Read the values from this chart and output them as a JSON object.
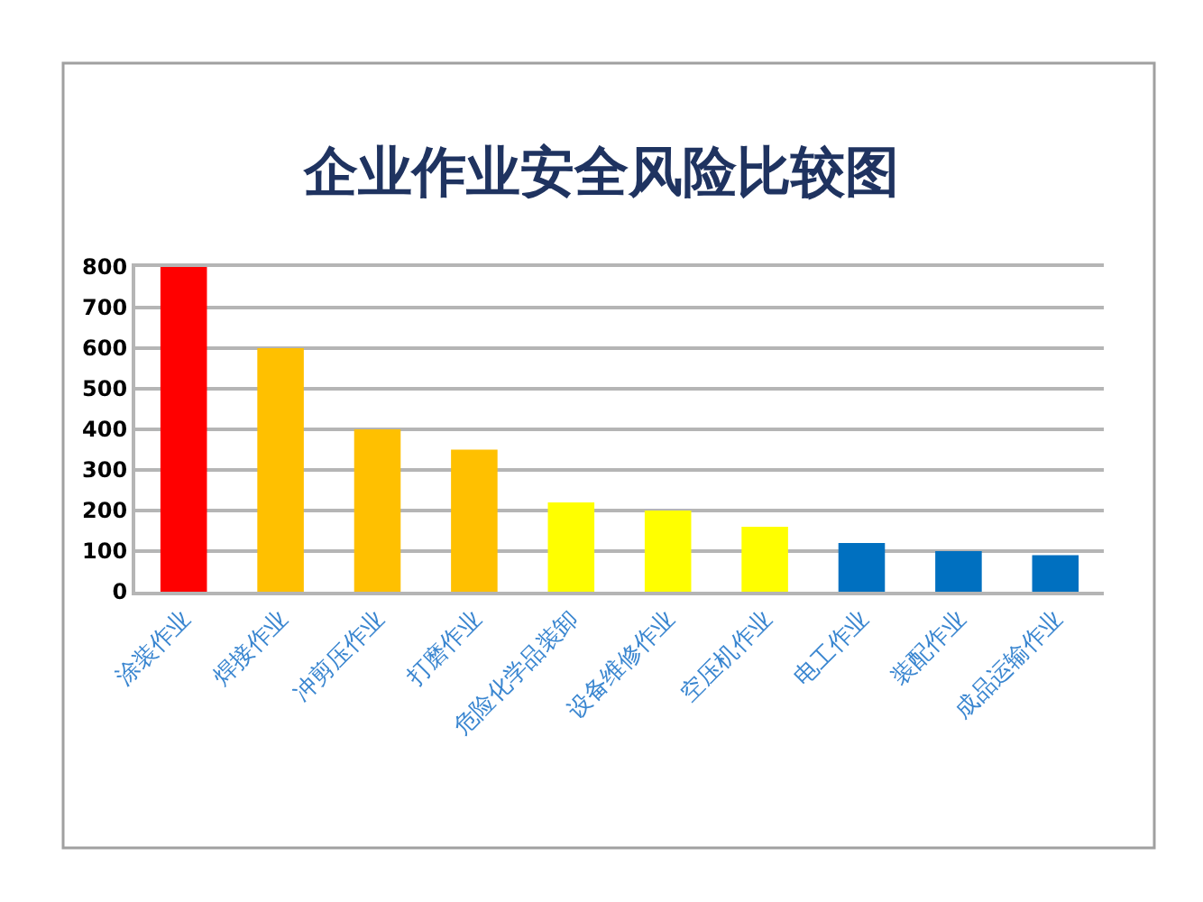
{
  "chart_data": {
    "type": "bar",
    "title": "企业作业安全风险比较图",
    "categories": [
      "涂装作业",
      "焊接作业",
      "冲剪压作业",
      "打磨作业",
      "危险化学品装卸",
      "设备维修作业",
      "空压机作业",
      "电工作业",
      "装配作业",
      "成品运输作业"
    ],
    "values": [
      800,
      600,
      400,
      350,
      220,
      200,
      160,
      120,
      100,
      90
    ],
    "colors": [
      "#ff0000",
      "#ffc000",
      "#ffc000",
      "#ffc000",
      "#ffff00",
      "#ffff00",
      "#ffff00",
      "#0070c0",
      "#0070c0",
      "#0070c0"
    ],
    "ylim": [
      0,
      800
    ],
    "yticks": [
      0,
      100,
      200,
      300,
      400,
      500,
      600,
      700,
      800
    ],
    "grid": "y"
  }
}
